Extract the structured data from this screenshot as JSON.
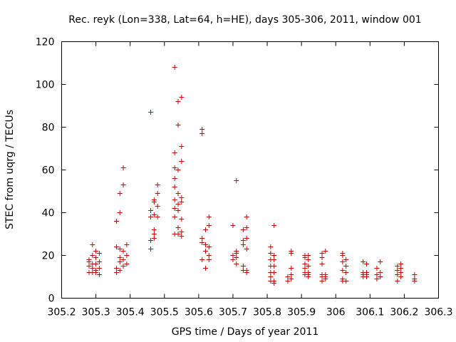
{
  "chart_data": {
    "type": "scatter",
    "title": "Rec. reyk (Lon=338, Lat=64, h=HE), days 305-306, 2011, window 001",
    "xlabel": "GPS time / Days of year 2011",
    "ylabel": "STEC from uqrg / TECUs",
    "xlim": [
      305.2,
      306.3
    ],
    "ylim": [
      0,
      120
    ],
    "xticks": [
      "305.2",
      "305.3",
      "305.4",
      "305.5",
      "305.6",
      "305.7",
      "305.8",
      "305.9",
      "306",
      "306.1",
      "306.2",
      "306.3"
    ],
    "yticks": [
      "0",
      "20",
      "40",
      "60",
      "80",
      "100",
      "120"
    ],
    "grid": false,
    "marker": "+",
    "color": "#cc0000",
    "series": [
      {
        "name": "STEC",
        "points": [
          [
            305.28,
            12
          ],
          [
            305.28,
            15
          ],
          [
            305.28,
            17
          ],
          [
            305.28,
            18
          ],
          [
            305.29,
            14
          ],
          [
            305.29,
            16
          ],
          [
            305.29,
            20
          ],
          [
            305.29,
            25
          ],
          [
            305.29,
            12
          ],
          [
            305.3,
            13
          ],
          [
            305.3,
            16
          ],
          [
            305.3,
            19
          ],
          [
            305.3,
            22
          ],
          [
            305.3,
            12
          ],
          [
            305.31,
            14
          ],
          [
            305.31,
            17
          ],
          [
            305.31,
            21
          ],
          [
            305.31,
            11
          ],
          [
            305.36,
            12
          ],
          [
            305.36,
            14
          ],
          [
            305.36,
            24
          ],
          [
            305.36,
            36
          ],
          [
            305.37,
            13
          ],
          [
            305.37,
            17
          ],
          [
            305.37,
            19
          ],
          [
            305.37,
            23
          ],
          [
            305.37,
            40
          ],
          [
            305.37,
            49
          ],
          [
            305.38,
            15
          ],
          [
            305.38,
            18
          ],
          [
            305.38,
            22
          ],
          [
            305.38,
            53
          ],
          [
            305.38,
            61
          ],
          [
            305.39,
            16
          ],
          [
            305.39,
            20
          ],
          [
            305.39,
            25
          ],
          [
            305.46,
            23
          ],
          [
            305.46,
            27
          ],
          [
            305.46,
            38
          ],
          [
            305.46,
            41
          ],
          [
            305.46,
            87
          ],
          [
            305.47,
            28
          ],
          [
            305.47,
            32
          ],
          [
            305.47,
            39
          ],
          [
            305.47,
            45
          ],
          [
            305.47,
            46
          ],
          [
            305.47,
            30
          ],
          [
            305.48,
            38
          ],
          [
            305.48,
            43
          ],
          [
            305.48,
            49
          ],
          [
            305.48,
            53
          ],
          [
            305.53,
            30
          ],
          [
            305.53,
            38
          ],
          [
            305.53,
            42
          ],
          [
            305.53,
            46
          ],
          [
            305.53,
            52
          ],
          [
            305.53,
            56
          ],
          [
            305.53,
            61
          ],
          [
            305.53,
            68
          ],
          [
            305.53,
            108
          ],
          [
            305.54,
            30
          ],
          [
            305.54,
            33
          ],
          [
            305.54,
            41
          ],
          [
            305.54,
            44
          ],
          [
            305.54,
            49
          ],
          [
            305.54,
            60
          ],
          [
            305.54,
            81
          ],
          [
            305.54,
            92
          ],
          [
            305.55,
            29
          ],
          [
            305.55,
            31
          ],
          [
            305.55,
            37
          ],
          [
            305.55,
            45
          ],
          [
            305.55,
            47
          ],
          [
            305.55,
            64
          ],
          [
            305.55,
            71
          ],
          [
            305.55,
            94
          ],
          [
            305.61,
            18
          ],
          [
            305.61,
            26
          ],
          [
            305.61,
            28
          ],
          [
            305.61,
            77
          ],
          [
            305.61,
            79
          ],
          [
            305.62,
            14
          ],
          [
            305.62,
            22
          ],
          [
            305.62,
            25
          ],
          [
            305.62,
            32
          ],
          [
            305.63,
            18
          ],
          [
            305.63,
            20
          ],
          [
            305.63,
            24
          ],
          [
            305.63,
            34
          ],
          [
            305.63,
            38
          ],
          [
            305.7,
            18
          ],
          [
            305.7,
            20
          ],
          [
            305.7,
            34
          ],
          [
            305.71,
            16
          ],
          [
            305.71,
            19
          ],
          [
            305.71,
            21
          ],
          [
            305.71,
            22
          ],
          [
            305.71,
            55
          ],
          [
            305.73,
            13
          ],
          [
            305.73,
            15
          ],
          [
            305.73,
            25
          ],
          [
            305.73,
            27
          ],
          [
            305.73,
            32
          ],
          [
            305.74,
            12
          ],
          [
            305.74,
            13
          ],
          [
            305.74,
            23
          ],
          [
            305.74,
            28
          ],
          [
            305.74,
            33
          ],
          [
            305.74,
            38
          ],
          [
            305.81,
            8
          ],
          [
            305.81,
            10
          ],
          [
            305.81,
            12
          ],
          [
            305.81,
            15
          ],
          [
            305.81,
            18
          ],
          [
            305.81,
            21
          ],
          [
            305.81,
            24
          ],
          [
            305.82,
            7
          ],
          [
            305.82,
            8
          ],
          [
            305.82,
            12
          ],
          [
            305.82,
            15
          ],
          [
            305.82,
            18
          ],
          [
            305.82,
            20
          ],
          [
            305.82,
            34
          ],
          [
            305.86,
            8
          ],
          [
            305.86,
            10
          ],
          [
            305.87,
            9
          ],
          [
            305.87,
            11
          ],
          [
            305.87,
            14
          ],
          [
            305.87,
            21
          ],
          [
            305.87,
            22
          ],
          [
            305.91,
            11
          ],
          [
            305.91,
            12
          ],
          [
            305.91,
            14
          ],
          [
            305.91,
            16
          ],
          [
            305.91,
            19
          ],
          [
            305.91,
            20
          ],
          [
            305.92,
            10
          ],
          [
            305.92,
            11
          ],
          [
            305.92,
            12
          ],
          [
            305.92,
            15
          ],
          [
            305.92,
            18
          ],
          [
            305.92,
            20
          ],
          [
            305.96,
            8
          ],
          [
            305.96,
            10
          ],
          [
            305.96,
            11
          ],
          [
            305.96,
            16
          ],
          [
            305.96,
            19
          ],
          [
            305.96,
            21
          ],
          [
            305.97,
            9
          ],
          [
            305.97,
            10
          ],
          [
            305.97,
            11
          ],
          [
            305.97,
            22
          ],
          [
            306.02,
            8
          ],
          [
            306.02,
            9
          ],
          [
            306.02,
            13
          ],
          [
            306.02,
            17
          ],
          [
            306.02,
            20
          ],
          [
            306.02,
            21
          ],
          [
            306.03,
            8
          ],
          [
            306.03,
            12
          ],
          [
            306.03,
            15
          ],
          [
            306.03,
            18
          ],
          [
            306.08,
            10
          ],
          [
            306.08,
            11
          ],
          [
            306.08,
            12
          ],
          [
            306.08,
            17
          ],
          [
            306.09,
            10
          ],
          [
            306.09,
            11
          ],
          [
            306.09,
            12
          ],
          [
            306.09,
            16
          ],
          [
            306.12,
            9
          ],
          [
            306.12,
            11
          ],
          [
            306.12,
            14
          ],
          [
            306.13,
            10
          ],
          [
            306.13,
            12
          ],
          [
            306.13,
            17
          ],
          [
            306.18,
            8
          ],
          [
            306.18,
            11
          ],
          [
            306.18,
            13
          ],
          [
            306.18,
            15
          ],
          [
            306.19,
            10
          ],
          [
            306.19,
            12
          ],
          [
            306.19,
            14
          ],
          [
            306.19,
            16
          ],
          [
            306.23,
            8
          ],
          [
            306.23,
            9
          ],
          [
            306.23,
            11
          ]
        ]
      }
    ]
  }
}
